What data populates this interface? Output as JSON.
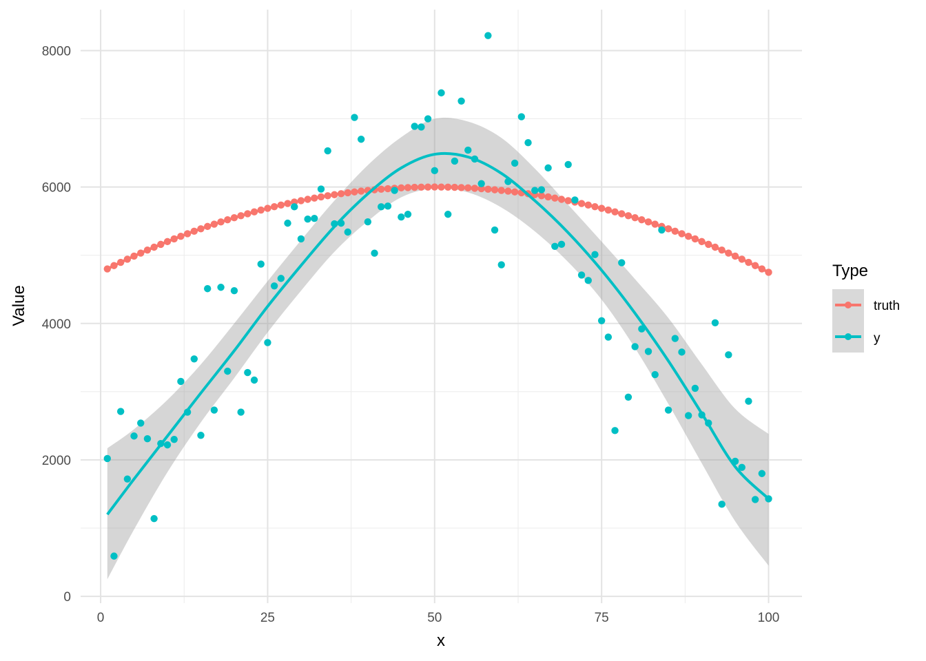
{
  "chart_data": {
    "type": "line",
    "title": "",
    "xlabel": "x",
    "ylabel": "Value",
    "xlim": [
      -3,
      105
    ],
    "ylim": [
      -100,
      8600
    ],
    "x_ticks": [
      0,
      25,
      50,
      75,
      100
    ],
    "x_tick_labels": [
      "0",
      "25",
      "50",
      "75",
      "100"
    ],
    "y_ticks": [
      0,
      2000,
      4000,
      6000,
      8000
    ],
    "y_tick_labels": [
      "0",
      "2000",
      "4000",
      "6000",
      "8000"
    ],
    "grid": true,
    "legend": {
      "title": "Type",
      "position": "right",
      "entries": [
        "truth",
        "y"
      ]
    },
    "colors": {
      "truth": "#F8766D",
      "y": "#00BFC4",
      "band": "#999999"
    },
    "truth": {
      "name": "truth",
      "formula": "6000 - 0.5*(x-50)^2",
      "x_min": 1,
      "x_max": 100
    },
    "y_points": [
      [
        1,
        2020
      ],
      [
        2,
        590
      ],
      [
        3,
        2710
      ],
      [
        4,
        1720
      ],
      [
        5,
        2350
      ],
      [
        6,
        2540
      ],
      [
        7,
        2310
      ],
      [
        8,
        1140
      ],
      [
        9,
        2240
      ],
      [
        10,
        2220
      ],
      [
        11,
        2300
      ],
      [
        12,
        3150
      ],
      [
        13,
        2700
      ],
      [
        14,
        3480
      ],
      [
        15,
        2360
      ],
      [
        16,
        4510
      ],
      [
        17,
        2730
      ],
      [
        18,
        4530
      ],
      [
        19,
        3300
      ],
      [
        20,
        4480
      ],
      [
        21,
        2700
      ],
      [
        22,
        3280
      ],
      [
        23,
        3170
      ],
      [
        24,
        4870
      ],
      [
        25,
        3720
      ],
      [
        26,
        4550
      ],
      [
        27,
        4660
      ],
      [
        28,
        5470
      ],
      [
        29,
        5710
      ],
      [
        30,
        5240
      ],
      [
        31,
        5530
      ],
      [
        32,
        5540
      ],
      [
        33,
        5970
      ],
      [
        34,
        6530
      ],
      [
        35,
        5460
      ],
      [
        36,
        5470
      ],
      [
        37,
        5340
      ],
      [
        38,
        7020
      ],
      [
        39,
        6700
      ],
      [
        40,
        5490
      ],
      [
        41,
        5030
      ],
      [
        42,
        5710
      ],
      [
        43,
        5720
      ],
      [
        44,
        5950
      ],
      [
        45,
        5560
      ],
      [
        46,
        5600
      ],
      [
        47,
        6890
      ],
      [
        48,
        6880
      ],
      [
        49,
        7000
      ],
      [
        50,
        6240
      ],
      [
        51,
        7380
      ],
      [
        52,
        5600
      ],
      [
        53,
        6380
      ],
      [
        54,
        7260
      ],
      [
        55,
        6540
      ],
      [
        56,
        6410
      ],
      [
        57,
        6050
      ],
      [
        58,
        8220
      ],
      [
        59,
        5370
      ],
      [
        60,
        4860
      ],
      [
        61,
        6080
      ],
      [
        62,
        6350
      ],
      [
        63,
        7030
      ],
      [
        64,
        6650
      ],
      [
        65,
        5950
      ],
      [
        66,
        5960
      ],
      [
        67,
        6280
      ],
      [
        68,
        5130
      ],
      [
        69,
        5160
      ],
      [
        70,
        6330
      ],
      [
        71,
        5810
      ],
      [
        72,
        4710
      ],
      [
        73,
        4630
      ],
      [
        74,
        5010
      ],
      [
        75,
        4040
      ],
      [
        76,
        3800
      ],
      [
        77,
        2430
      ],
      [
        78,
        4890
      ],
      [
        79,
        2920
      ],
      [
        80,
        3660
      ],
      [
        81,
        3920
      ],
      [
        82,
        3590
      ],
      [
        83,
        3250
      ],
      [
        84,
        5370
      ],
      [
        85,
        2730
      ],
      [
        86,
        3780
      ],
      [
        87,
        3580
      ],
      [
        88,
        2650
      ],
      [
        89,
        3050
      ],
      [
        90,
        2660
      ],
      [
        91,
        2540
      ],
      [
        92,
        4010
      ],
      [
        93,
        1350
      ],
      [
        94,
        3540
      ],
      [
        95,
        1980
      ],
      [
        96,
        1890
      ],
      [
        97,
        2860
      ],
      [
        98,
        1420
      ],
      [
        99,
        1800
      ],
      [
        100,
        1430
      ]
    ],
    "smooth_fit": {
      "name": "y",
      "x": [
        1,
        5,
        10,
        15,
        20,
        25,
        30,
        35,
        40,
        45,
        50,
        55,
        60,
        65,
        70,
        75,
        80,
        85,
        90,
        95,
        100
      ],
      "y": [
        1200,
        1720,
        2350,
        2980,
        3600,
        4250,
        4850,
        5420,
        5900,
        6280,
        6480,
        6440,
        6200,
        5800,
        5330,
        4780,
        4150,
        3450,
        2680,
        1900,
        1430
      ],
      "lower": [
        250,
        980,
        1820,
        2550,
        3200,
        3870,
        4480,
        5050,
        5500,
        5850,
        5980,
        5920,
        5700,
        5350,
        4900,
        4350,
        3640,
        2820,
        1950,
        1100,
        450
      ],
      "upper": [
        2170,
        2450,
        2880,
        3400,
        4000,
        4620,
        5220,
        5800,
        6320,
        6730,
        7000,
        6960,
        6720,
        6270,
        5740,
        5200,
        4650,
        4080,
        3400,
        2750,
        2380
      ]
    }
  }
}
